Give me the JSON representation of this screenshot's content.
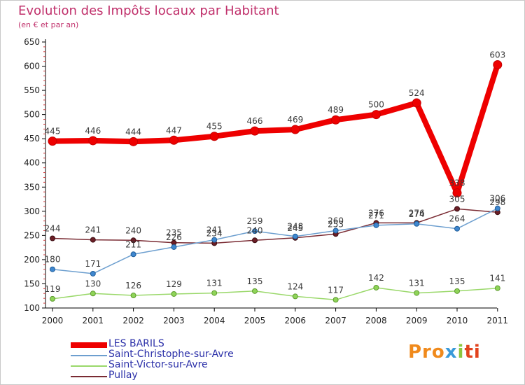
{
  "title": "Evolution des Impôts locaux par Habitant",
  "subtitle": "(en € et par an)",
  "logo": {
    "text": [
      "Pro",
      "x",
      "i",
      "ti"
    ],
    "colors": [
      "#f08a1c",
      "#3a9ad9",
      "#8cc63f",
      "#e2431e"
    ]
  },
  "chart_data": {
    "type": "line",
    "title": "Evolution des Impôts locaux par Habitant",
    "subtitle": "(en € et par an)",
    "xlabel": "",
    "ylabel": "",
    "x": [
      "2000",
      "2001",
      "2002",
      "2003",
      "2004",
      "2005",
      "2006",
      "2007",
      "2008",
      "2009",
      "2010",
      "2011"
    ],
    "ylim": [
      100,
      650
    ],
    "yticks": [
      100,
      150,
      200,
      250,
      300,
      350,
      400,
      450,
      500,
      550,
      600,
      650
    ],
    "grid": false,
    "legend_position": "bottom-left",
    "series": [
      {
        "name": "LES BARILS",
        "color": "#ee0000",
        "values": [
          445,
          446,
          444,
          447,
          455,
          466,
          469,
          489,
          500,
          524,
          338,
          603
        ]
      },
      {
        "name": "Saint-Christophe-sur-Avre",
        "color": "#6d9fcf",
        "values": [
          180,
          171,
          211,
          226,
          241,
          259,
          248,
          260,
          271,
          274,
          264,
          306
        ]
      },
      {
        "name": "Saint-Victor-sur-Avre",
        "color": "#9ad86a",
        "values": [
          119,
          130,
          126,
          129,
          131,
          135,
          124,
          117,
          142,
          131,
          135,
          141
        ]
      },
      {
        "name": "Pullay",
        "color": "#7a2b33",
        "values": [
          244,
          241,
          240,
          235,
          234,
          240,
          245,
          253,
          276,
          276,
          305,
          298
        ]
      }
    ]
  }
}
